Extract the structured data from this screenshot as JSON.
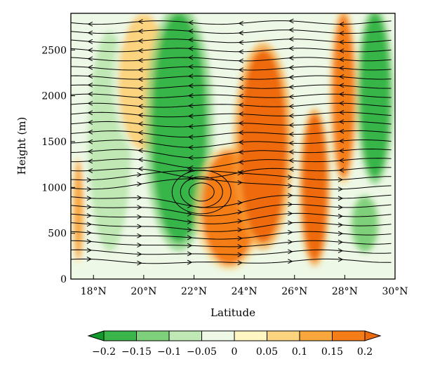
{
  "chart_data": {
    "type": "heatmap",
    "subtype": "filled contour with streamlines",
    "title": "",
    "xlabel": "Latitude",
    "ylabel": "Height (m)",
    "xlim": [
      17.1,
      30.0
    ],
    "ylim": [
      0,
      2900
    ],
    "x_ticks": [
      18,
      20,
      22,
      24,
      26,
      28,
      30
    ],
    "x_tick_labels": [
      "18°N",
      "20°N",
      "22°N",
      "24°N",
      "26°N",
      "28°N",
      "30°N"
    ],
    "y_ticks": [
      0,
      500,
      1000,
      1500,
      2000,
      2500
    ],
    "y_tick_labels": [
      "0",
      "500",
      "1000",
      "1500",
      "2000",
      "2500"
    ],
    "colorbar": {
      "levels": [
        -0.2,
        -0.15,
        -0.1,
        -0.05,
        0,
        0.05,
        0.1,
        0.15,
        0.2
      ],
      "level_labels": [
        "−0.2",
        "−0.15",
        "−0.1",
        "−0.05",
        "0",
        "0.05",
        "0.1",
        "0.15",
        "0.2"
      ],
      "colors": [
        "#0f9a2a",
        "#39b54a",
        "#7fd07a",
        "#bfe8b4",
        "#edf8e6",
        "#fff6c2",
        "#fcd37e",
        "#f9a73d",
        "#f57d18",
        "#ee6a0c"
      ],
      "orientation": "horizontal",
      "extend": "both"
    },
    "field_features": [
      {
        "type": "positive",
        "lat_range": [
          17.2,
          17.6
        ],
        "height_range": [
          200,
          1300
        ],
        "value": 0.1
      },
      {
        "type": "negative",
        "lat_range": [
          17.8,
          19.5
        ],
        "height_range": [
          300,
          2700
        ],
        "value": -0.1
      },
      {
        "type": "positive",
        "lat_range": [
          19.0,
          21.0
        ],
        "height_range": [
          1400,
          2900
        ],
        "value": 0.05
      },
      {
        "type": "negative",
        "lat_range": [
          20.3,
          22.5
        ],
        "height_range": [
          400,
          2900
        ],
        "value": -0.2
      },
      {
        "type": "positive",
        "lat_range": [
          22.3,
          24.5
        ],
        "height_range": [
          150,
          1400
        ],
        "value": 0.15
      },
      {
        "type": "positive",
        "lat_range": [
          23.8,
          25.7
        ],
        "height_range": [
          400,
          2500
        ],
        "value": 0.2
      },
      {
        "type": "positive",
        "lat_range": [
          26.3,
          27.3
        ],
        "height_range": [
          200,
          1800
        ],
        "value": 0.2
      },
      {
        "type": "positive",
        "lat_range": [
          27.5,
          28.4
        ],
        "height_range": [
          1100,
          2900
        ],
        "value": 0.15
      },
      {
        "type": "negative",
        "lat_range": [
          28.6,
          29.8
        ],
        "height_range": [
          1100,
          2900
        ],
        "value": -0.2
      },
      {
        "type": "negative",
        "lat_range": [
          28.3,
          29.3
        ],
        "height_range": [
          300,
          900
        ],
        "value": -0.15
      }
    ],
    "circulation": {
      "vortex_center": {
        "lat": 22.3,
        "height": 950
      },
      "flow_direction_upper": "westward",
      "flow_direction_lower": "eastward"
    },
    "grid": false,
    "legend": "colorbar-bottom"
  }
}
